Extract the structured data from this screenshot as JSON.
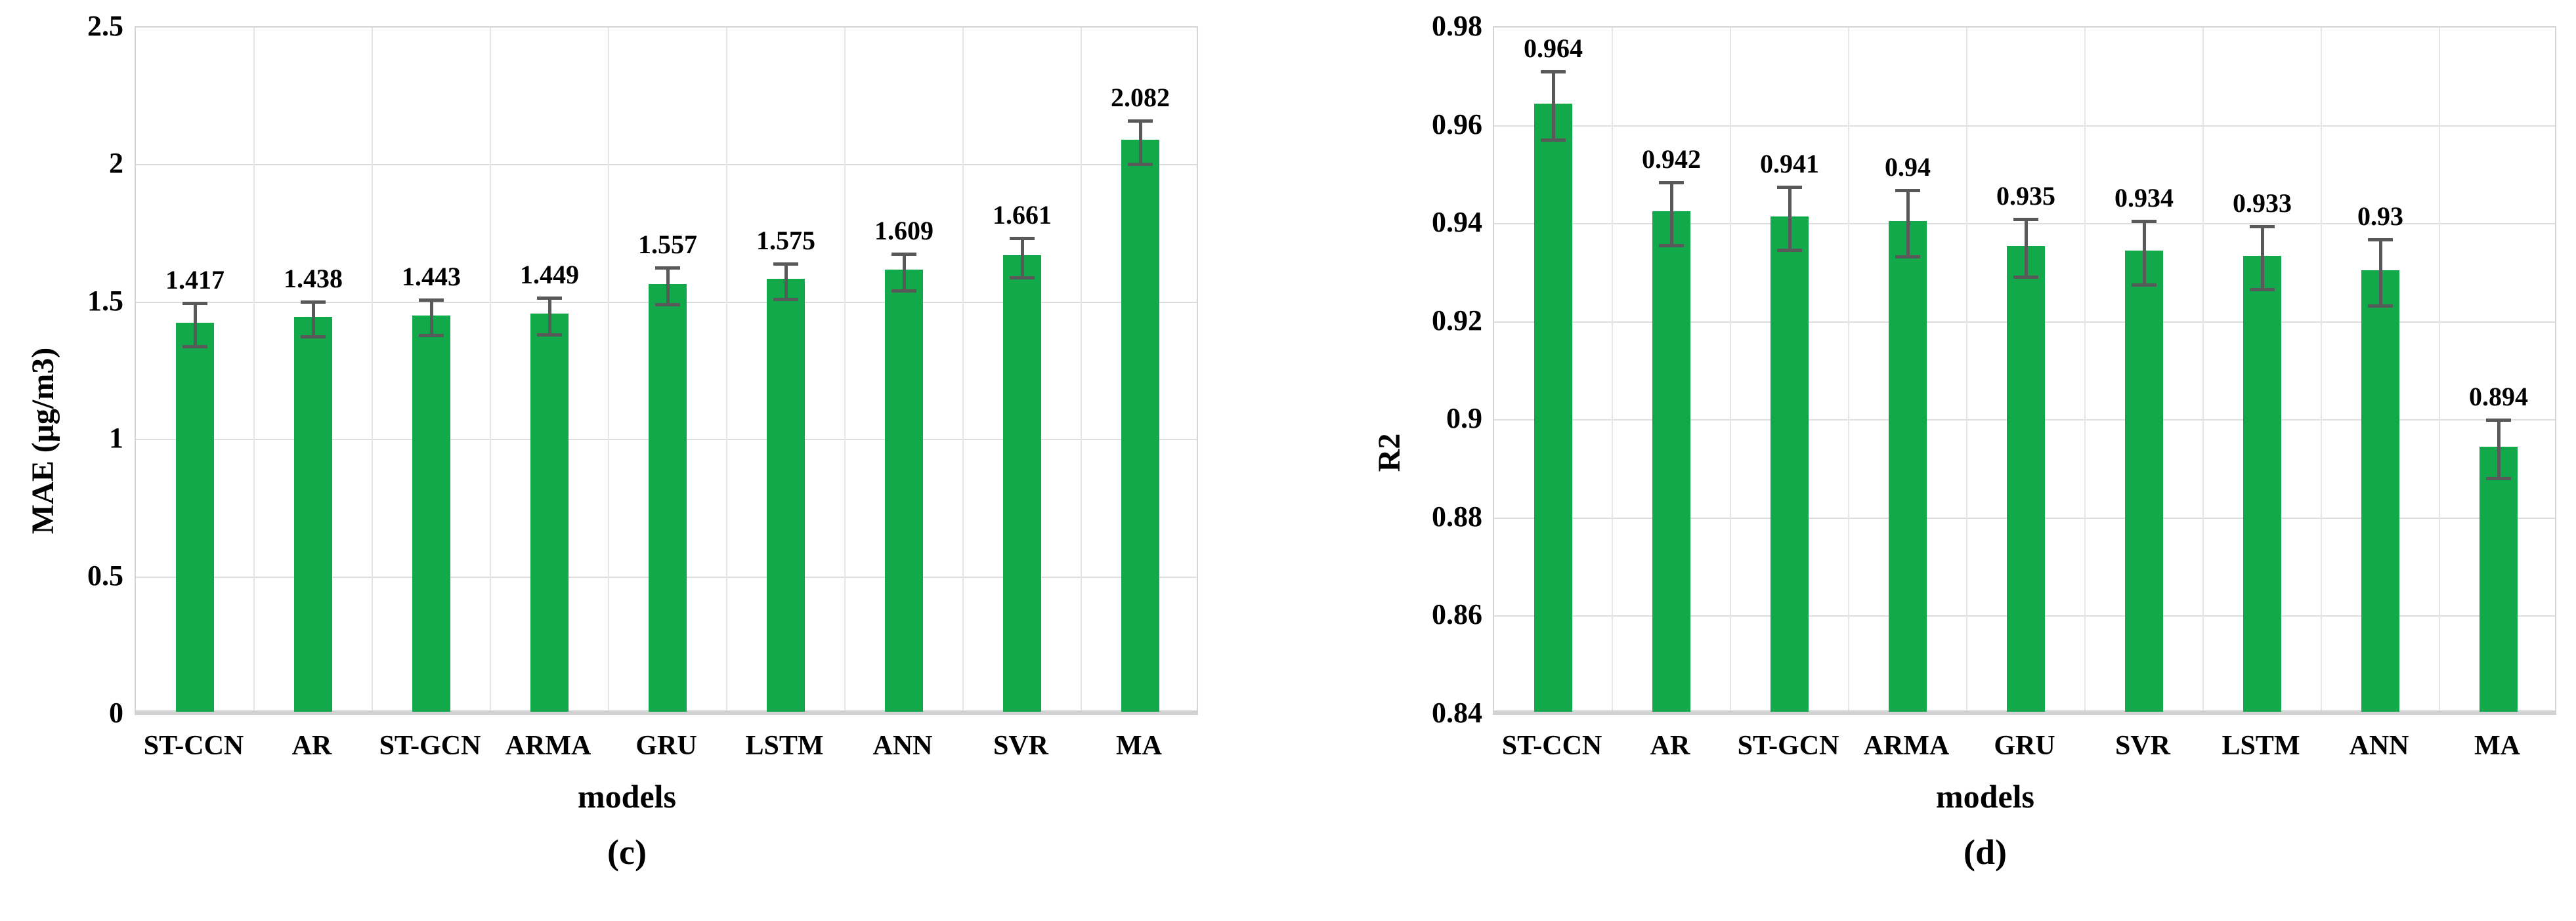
{
  "figure": {
    "background": "#ffffff",
    "colors": {
      "bar": "#12a94b",
      "error_bar": "#595959",
      "gridline": "#dedede",
      "plot_border": "#d4d4d4",
      "axis_band": "#d2d2d2",
      "text": "#000000"
    }
  },
  "chart_data": [
    {
      "type": "bar",
      "panel_label": "(c)",
      "title": "",
      "xlabel": "models",
      "ylabel": "MAE (μg/m3)",
      "ylim": [
        0,
        2.5
      ],
      "ytick_values": [
        0,
        0.5,
        1,
        1.5,
        2,
        2.5
      ],
      "ytick_labels": [
        "0",
        "0.5",
        "1",
        "1.5",
        "2",
        "2.5"
      ],
      "grid": true,
      "legend": "none",
      "categories": [
        "ST-CCN",
        "AR",
        "ST-GCN",
        "ARMA",
        "GRU",
        "LSTM",
        "ANN",
        "SVR",
        "MA"
      ],
      "values": [
        1.417,
        1.438,
        1.443,
        1.449,
        1.557,
        1.575,
        1.609,
        1.661,
        2.082
      ],
      "value_labels": [
        "1.417",
        "1.438",
        "1.443",
        "1.449",
        "1.557",
        "1.575",
        "1.609",
        "1.661",
        "2.082"
      ],
      "errors": [
        0.08,
        0.065,
        0.066,
        0.068,
        0.068,
        0.065,
        0.068,
        0.072,
        0.08
      ]
    },
    {
      "type": "bar",
      "panel_label": "(d)",
      "title": "",
      "xlabel": "models",
      "ylabel": "R2",
      "ylim": [
        0.84,
        0.98
      ],
      "ytick_values": [
        0.84,
        0.86,
        0.88,
        0.9,
        0.92,
        0.94,
        0.96,
        0.98
      ],
      "ytick_labels": [
        "0.84",
        "0.86",
        "0.88",
        "0.9",
        "0.92",
        "0.94",
        "0.96",
        "0.98"
      ],
      "grid": true,
      "legend": "none",
      "categories": [
        "ST-CCN",
        "AR",
        "ST-GCN",
        "ARMA",
        "GRU",
        "SVR",
        "LSTM",
        "ANN",
        "MA"
      ],
      "values": [
        0.964,
        0.942,
        0.941,
        0.94,
        0.935,
        0.934,
        0.933,
        0.93,
        0.894
      ],
      "value_labels": [
        "0.964",
        "0.942",
        "0.941",
        "0.94",
        "0.935",
        "0.934",
        "0.933",
        "0.93",
        "0.894"
      ],
      "errors": [
        0.007,
        0.0065,
        0.0065,
        0.0068,
        0.006,
        0.0065,
        0.0065,
        0.0068,
        0.006
      ]
    }
  ]
}
